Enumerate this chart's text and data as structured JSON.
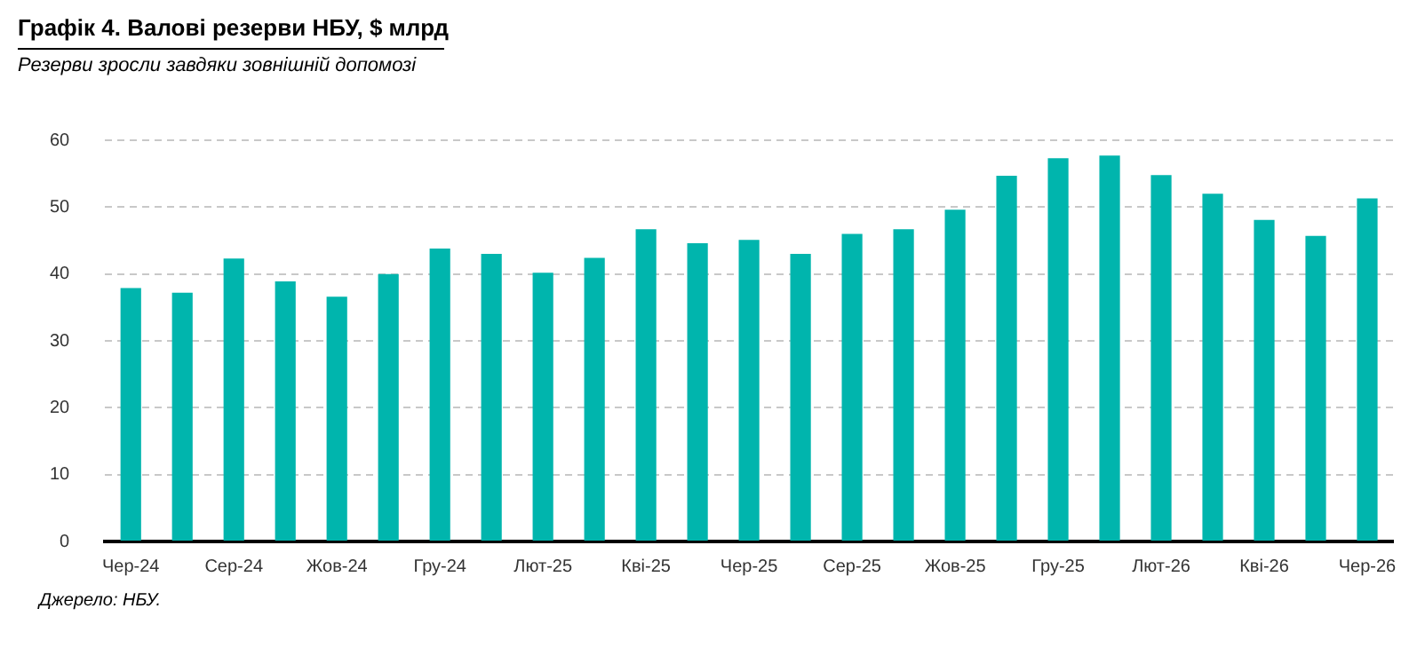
{
  "chart_data": {
    "type": "bar",
    "title": "Графік 4. Валові резерви НБУ, $ млрд",
    "subtitle": "Резерви зросли завдяки зовнішній допомозі",
    "categories": [
      "Чер-24",
      null,
      "Сер-24",
      null,
      "Жов-24",
      null,
      "Гру-24",
      null,
      "Лют-25",
      null,
      "Кві-25",
      null,
      "Чер-25",
      null,
      "Сер-25",
      null,
      "Жов-25",
      null,
      "Гру-25",
      null,
      "Лют-26",
      null,
      "Кві-26",
      null,
      "Чер-26"
    ],
    "values": [
      37.9,
      37.2,
      42.3,
      38.9,
      36.6,
      40.0,
      43.8,
      43.0,
      40.2,
      42.4,
      46.7,
      44.6,
      45.1,
      43.0,
      46.0,
      46.7,
      49.6,
      54.7,
      57.3,
      57.7,
      54.8,
      52.0,
      48.1,
      45.7,
      51.3
    ],
    "color": "#00b5ad",
    "ylim": [
      0,
      60
    ],
    "yticks": [
      0,
      10,
      20,
      30,
      40,
      50,
      60
    ],
    "grid": "y",
    "annotations": [
      "Джерело: НБУ."
    ]
  }
}
